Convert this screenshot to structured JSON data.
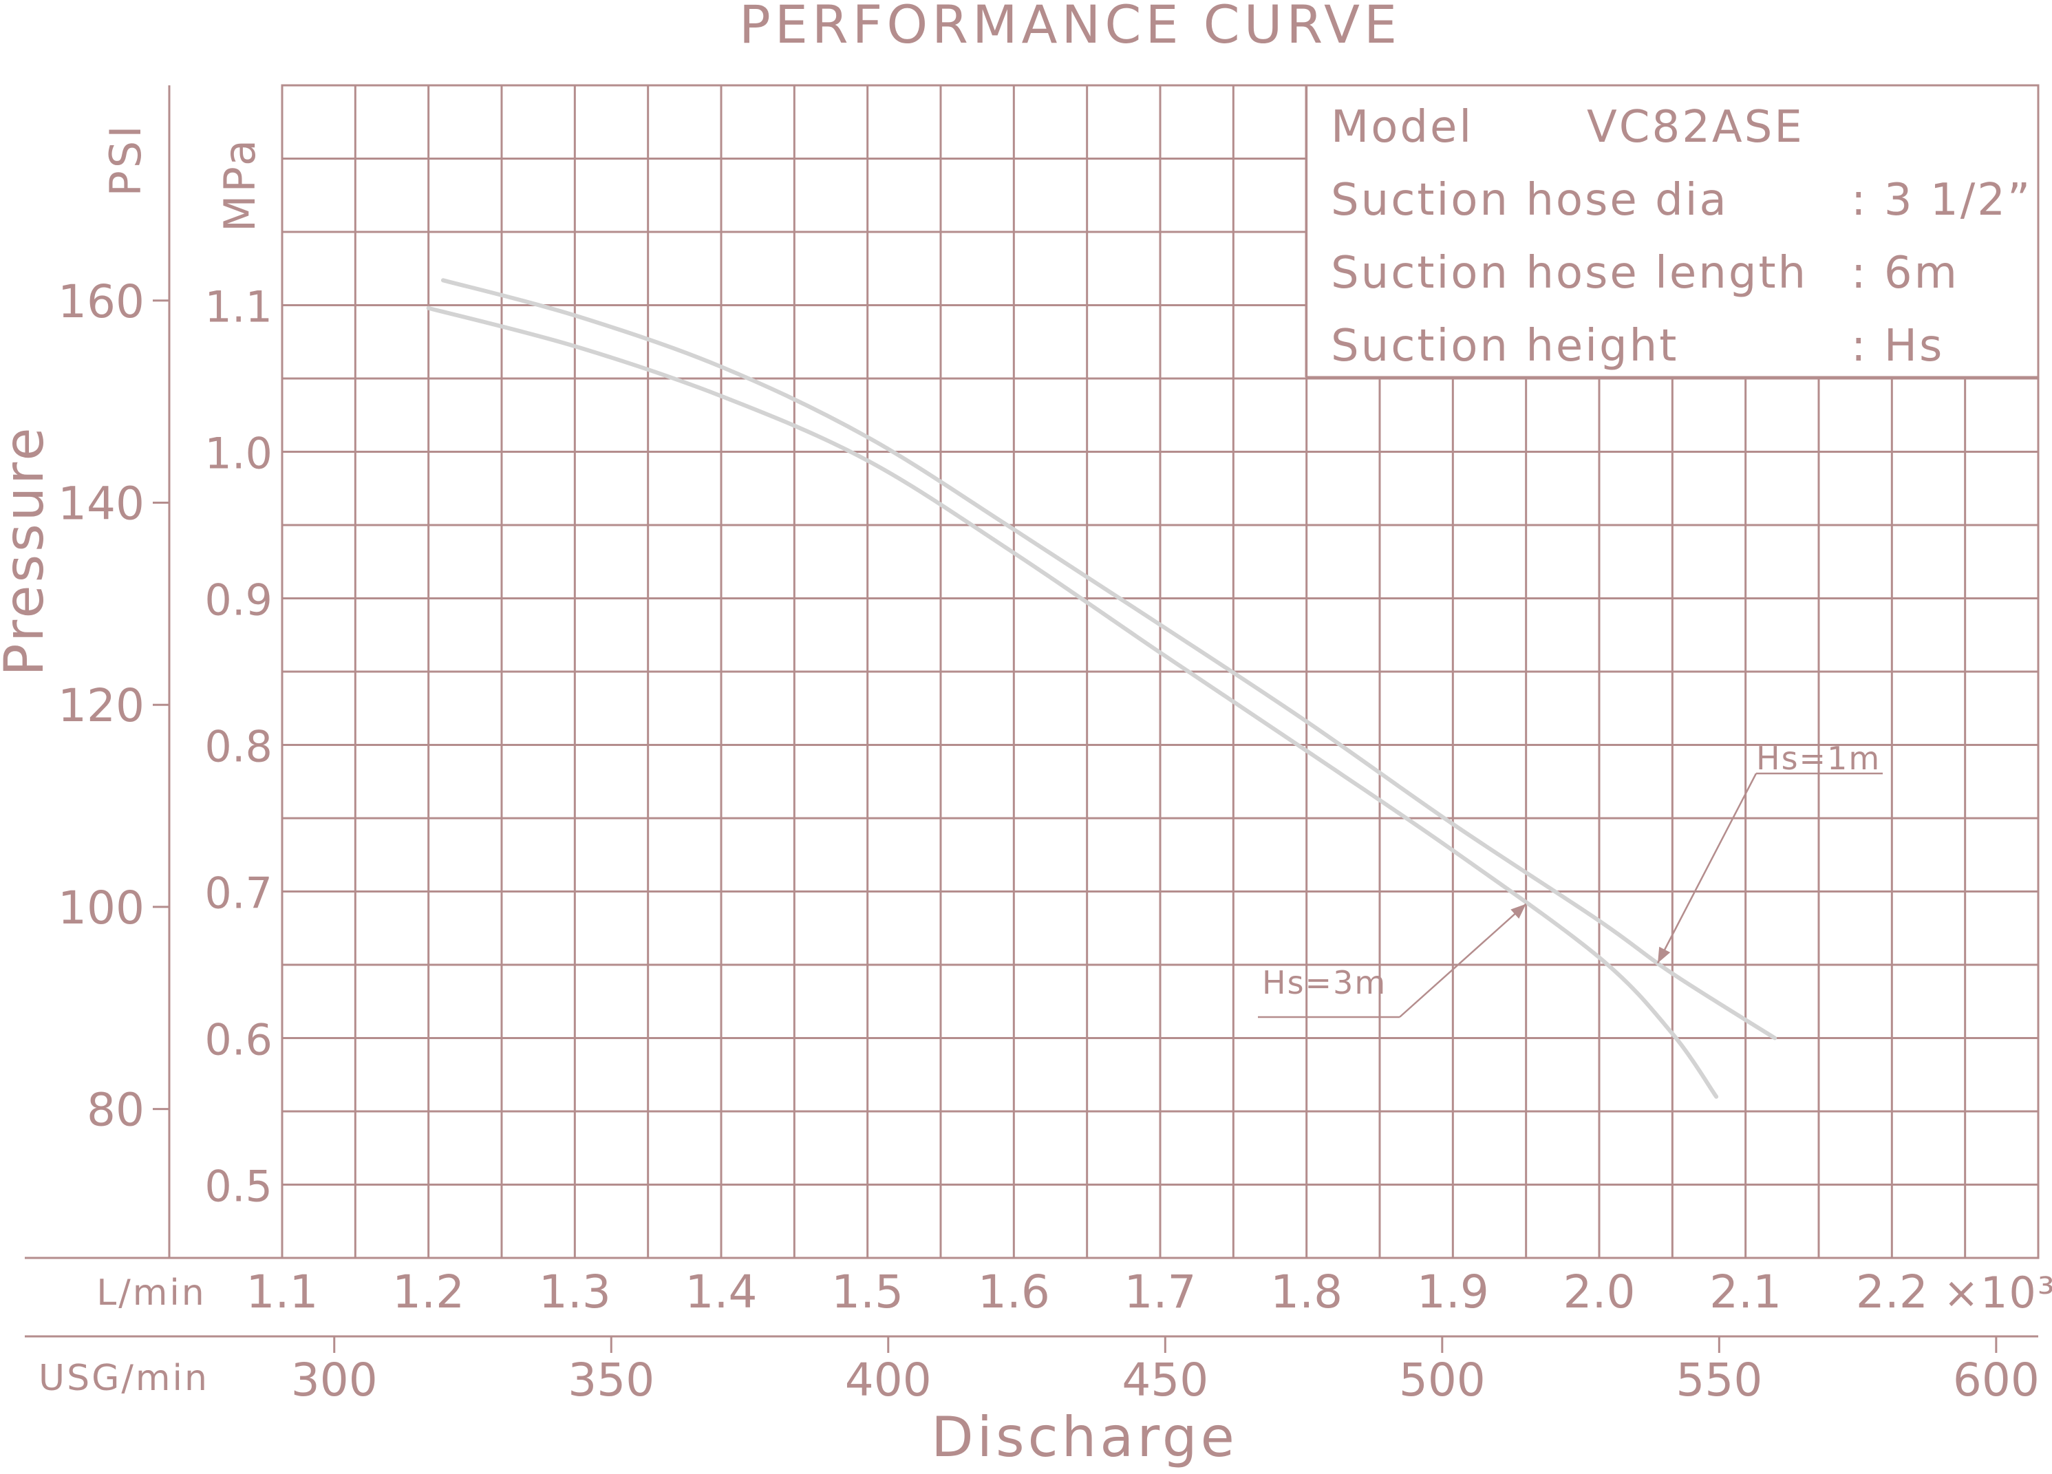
{
  "chart_data": {
    "type": "line",
    "title": "PERFORMANCE CURVE",
    "ylabel": "Pressure",
    "xlabel": "Discharge",
    "info": {
      "model_label": "Model",
      "model_value": "VC82ASE",
      "rows": [
        {
          "label": "Suction hose dia",
          "value": ": 3 1/2”"
        },
        {
          "label": "Suction hose length",
          "value": ": 6m"
        },
        {
          "label": "Suction height",
          "value": ": Hs"
        }
      ]
    },
    "axes": {
      "psi": {
        "unit": "PSI",
        "ticks": [
          80,
          100,
          120,
          140,
          160
        ],
        "tick_labels": [
          "80",
          "100",
          "120",
          "140",
          "160"
        ]
      },
      "mpa": {
        "unit": "MPa",
        "range": [
          0.45,
          1.25
        ],
        "ticks": [
          0.5,
          0.6,
          0.7,
          0.8,
          0.9,
          1.0,
          1.1
        ],
        "tick_labels": [
          "0.5",
          "0.6",
          "0.7",
          "0.8",
          "0.9",
          "1.0",
          "1.1"
        ],
        "minor_step": 0.05
      },
      "lmin": {
        "unit": "L/min",
        "range": [
          1.1,
          2.3
        ],
        "ticks": [
          1.1,
          1.2,
          1.3,
          1.4,
          1.5,
          1.6,
          1.7,
          1.8,
          1.9,
          2.0,
          2.1,
          2.2
        ],
        "tick_labels": [
          "1.1",
          "1.2",
          "1.3",
          "1.4",
          "1.5",
          "1.6",
          "1.7",
          "1.8",
          "1.9",
          "2.0",
          "2.1",
          "2.2"
        ],
        "multiplier": "×10³",
        "minor_step": 0.05
      },
      "usg": {
        "unit": "USG/min",
        "ticks": [
          300,
          350,
          400,
          450,
          500,
          550,
          600
        ],
        "tick_labels": [
          "300",
          "350",
          "400",
          "450",
          "500",
          "550",
          "600"
        ]
      }
    },
    "grid": true,
    "series": [
      {
        "name": "Hs=1m",
        "x": [
          1.21,
          1.3,
          1.4,
          1.5,
          1.6,
          1.7,
          1.8,
          1.9,
          2.0,
          2.05,
          2.12
        ],
        "y": [
          1.117,
          1.093,
          1.058,
          1.01,
          0.947,
          0.882,
          0.816,
          0.746,
          0.68,
          0.644,
          0.6
        ]
      },
      {
        "name": "Hs=3m",
        "x": [
          1.2,
          1.3,
          1.4,
          1.5,
          1.6,
          1.7,
          1.8,
          1.9,
          2.0,
          2.05,
          2.08
        ],
        "y": [
          1.098,
          1.072,
          1.038,
          0.994,
          0.931,
          0.863,
          0.796,
          0.728,
          0.655,
          0.603,
          0.56
        ]
      }
    ],
    "annotations": [
      {
        "text": "Hs=1m",
        "series": "Hs=1m",
        "at_x": 2.04
      },
      {
        "text": "Hs=3m",
        "series": "Hs=3m",
        "at_x": 1.95
      }
    ]
  }
}
